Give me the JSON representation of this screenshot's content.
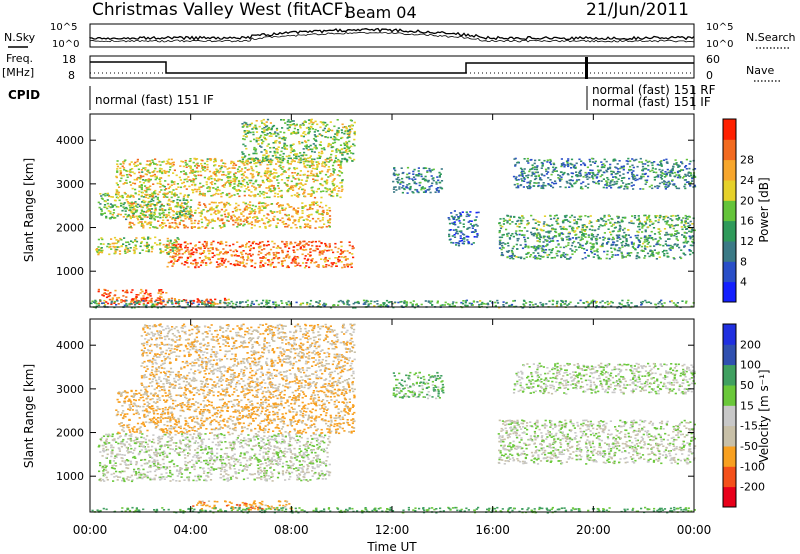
{
  "header": {
    "station": "Christmas Valley West (fitACF)",
    "beam": "Beam 04",
    "date": "21/Jun/2011"
  },
  "noise_panel": {
    "left_label": "N.Sky",
    "right_label": "N.Search",
    "ticks_left": [
      "10^5",
      "10^0"
    ],
    "ticks_right": [
      "10^5",
      "10^0"
    ]
  },
  "freq_panel": {
    "left_label_1": "Freq.",
    "left_label_2": "[MHz]",
    "right_label": "Nave",
    "ticks_left": [
      "18",
      "8"
    ],
    "ticks_right": [
      "60",
      "0"
    ]
  },
  "cpid": {
    "label": "CPID",
    "segments": [
      "normal (fast) 151 IF",
      "normal (fast) 151 RF",
      "normal (fast) 151 IF"
    ]
  },
  "x_axis": {
    "label": "Time UT",
    "ticks": [
      "00:00",
      "04:00",
      "08:00",
      "12:00",
      "16:00",
      "20:00",
      "00:00"
    ]
  },
  "colors": {
    "power_scale": [
      "#1420ff",
      "#2a4fc8",
      "#3b7a86",
      "#2f9a5a",
      "#64c43a",
      "#e6d12a",
      "#f7a62c",
      "#f26a1f",
      "#ff2000"
    ],
    "velocity_scale": [
      "#e8001a",
      "#f4501a",
      "#f8a020",
      "#c8c0a8",
      "#c8c8c8",
      "#6ac83a",
      "#40a060",
      "#3050b0",
      "#2030e0"
    ],
    "noise_line": "#000000"
  },
  "chart_data": [
    {
      "type": "heatmap",
      "name": "power",
      "ylabel": "Slant Range [km]",
      "xlabel": "",
      "xlim": [
        0,
        24
      ],
      "ylim": [
        180,
        4600
      ],
      "yticks": [
        1000,
        2000,
        3000,
        4000
      ],
      "colorbar": {
        "label": "Power [dB]",
        "ticks": [
          4,
          8,
          12,
          16,
          20,
          24,
          28
        ]
      },
      "scatter_regions": [
        {
          "x": [
            0.3,
            3.0
          ],
          "y": [
            250,
            600
          ],
          "value": 28
        },
        {
          "x": [
            1.5,
            5.5
          ],
          "y": [
            250,
            400
          ],
          "value": 26
        },
        {
          "x": [
            3.0,
            10.5
          ],
          "y": [
            1100,
            1700
          ],
          "value": 26
        },
        {
          "x": [
            1.5,
            9.5
          ],
          "y": [
            2000,
            2600
          ],
          "value": 22
        },
        {
          "x": [
            0.2,
            3.5
          ],
          "y": [
            1400,
            1800
          ],
          "value": 18
        },
        {
          "x": [
            0.3,
            4.0
          ],
          "y": [
            2200,
            2800
          ],
          "value": 16
        },
        {
          "x": [
            1.0,
            10.0
          ],
          "y": [
            2700,
            3600
          ],
          "value": 20
        },
        {
          "x": [
            6.0,
            10.5
          ],
          "y": [
            3500,
            4500
          ],
          "value": 16
        },
        {
          "x": [
            12.0,
            14.0
          ],
          "y": [
            2800,
            3400
          ],
          "value": 10
        },
        {
          "x": [
            14.2,
            15.4
          ],
          "y": [
            1600,
            2400
          ],
          "value": 8
        },
        {
          "x": [
            16.2,
            24.0
          ],
          "y": [
            1300,
            1900
          ],
          "value": 12
        },
        {
          "x": [
            16.2,
            24.0
          ],
          "y": [
            1900,
            2300
          ],
          "value": 14
        },
        {
          "x": [
            16.8,
            24.0
          ],
          "y": [
            2900,
            3600
          ],
          "value": 10
        },
        {
          "x": [
            0.0,
            24.0
          ],
          "y": [
            180,
            350
          ],
          "value": 12
        }
      ]
    },
    {
      "type": "heatmap",
      "name": "velocity",
      "ylabel": "Slant Range [km]",
      "xlabel": "Time UT",
      "xlim": [
        0,
        24
      ],
      "ylim": [
        180,
        4600
      ],
      "yticks": [
        1000,
        2000,
        3000,
        4000
      ],
      "colorbar": {
        "label": "Velocity [m s⁻¹]",
        "ticks": [
          200,
          100,
          50,
          15,
          -15,
          -50,
          -100,
          -200
        ]
      },
      "scatter_regions": [
        {
          "x": [
            0.3,
            9.5
          ],
          "y": [
            900,
            2000
          ],
          "value": 0
        },
        {
          "x": [
            1.0,
            10.5
          ],
          "y": [
            2000,
            3000
          ],
          "value": -60
        },
        {
          "x": [
            2.0,
            10.5
          ],
          "y": [
            3000,
            4500
          ],
          "value": -40
        },
        {
          "x": [
            4.0,
            8.0
          ],
          "y": [
            250,
            450
          ],
          "value": -80
        },
        {
          "x": [
            0.0,
            24.0
          ],
          "y": [
            180,
            300
          ],
          "value": 60
        },
        {
          "x": [
            12.0,
            14.0
          ],
          "y": [
            2800,
            3400
          ],
          "value": 40
        },
        {
          "x": [
            16.2,
            24.0
          ],
          "y": [
            1300,
            2300
          ],
          "value": 0
        },
        {
          "x": [
            16.8,
            24.0
          ],
          "y": [
            2900,
            3600
          ],
          "value": 10
        }
      ]
    }
  ]
}
